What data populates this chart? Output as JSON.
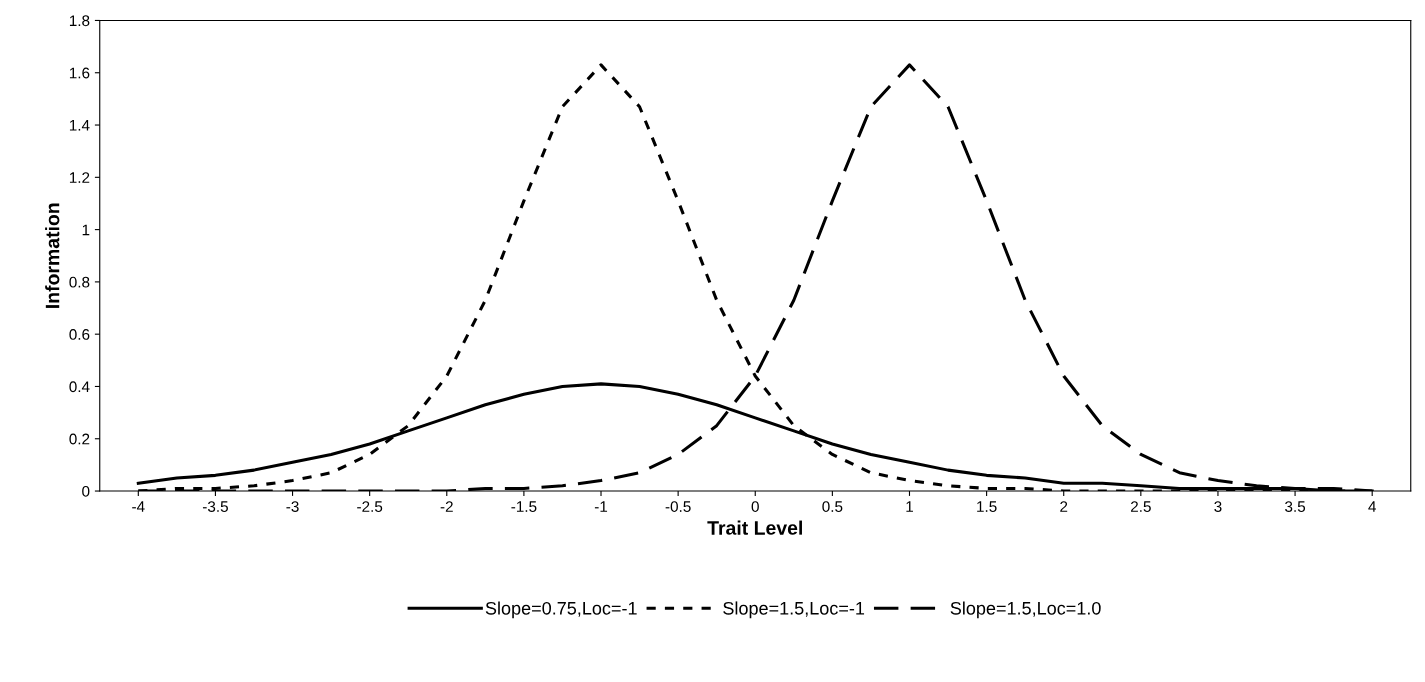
{
  "chart_data": {
    "type": "line",
    "xlabel": "Trait Level",
    "ylabel": "Information",
    "x": [
      -4,
      -3.75,
      -3.5,
      -3.25,
      -3,
      -2.75,
      -2.5,
      -2.25,
      -2,
      -1.75,
      -1.5,
      -1.25,
      -1,
      -0.75,
      -0.5,
      -0.25,
      0,
      0.25,
      0.5,
      0.75,
      1,
      1.25,
      1.5,
      1.75,
      2,
      2.25,
      2.5,
      2.75,
      3,
      3.25,
      3.5,
      3.75,
      4
    ],
    "series": [
      {
        "name": "Slope=0.75,Loc=-1",
        "color": "#000000",
        "line_style": "solid",
        "values": [
          0.03,
          0.05,
          0.06,
          0.08,
          0.11,
          0.14,
          0.18,
          0.23,
          0.28,
          0.33,
          0.37,
          0.4,
          0.41,
          0.4,
          0.37,
          0.33,
          0.28,
          0.23,
          0.18,
          0.14,
          0.11,
          0.08,
          0.06,
          0.05,
          0.03,
          0.03,
          0.02,
          0.01,
          0.01,
          0.01,
          0.01,
          0.0,
          0.0
        ]
      },
      {
        "name": "Slope=1.5,Loc=-1",
        "color": "#000000",
        "line_style": "dotted",
        "values": [
          0.0,
          0.01,
          0.01,
          0.02,
          0.04,
          0.07,
          0.14,
          0.25,
          0.44,
          0.73,
          1.11,
          1.47,
          1.63,
          1.47,
          1.11,
          0.73,
          0.44,
          0.25,
          0.14,
          0.07,
          0.04,
          0.02,
          0.01,
          0.01,
          0.0,
          0.0,
          0.0,
          0.0,
          0.0,
          0.0,
          0.0,
          0.0,
          0.0
        ]
      },
      {
        "name": "Slope=1.5,Loc=1.0",
        "color": "#000000",
        "line_style": "dashed",
        "values": [
          0.0,
          0.0,
          0.0,
          0.0,
          0.0,
          0.0,
          0.0,
          0.0,
          0.0,
          0.01,
          0.01,
          0.02,
          0.04,
          0.07,
          0.14,
          0.25,
          0.44,
          0.73,
          1.11,
          1.47,
          1.63,
          1.47,
          1.11,
          0.73,
          0.44,
          0.25,
          0.14,
          0.07,
          0.04,
          0.02,
          0.01,
          0.01,
          0.0
        ]
      }
    ],
    "xlim": [
      -4.25,
      4.25
    ],
    "xticks": [
      -4,
      -3.5,
      -3,
      -2.5,
      -2,
      -1.5,
      -1,
      -0.5,
      0,
      0.5,
      1,
      1.5,
      2,
      2.5,
      3,
      3.5,
      4
    ],
    "ylim": [
      0,
      1.8
    ],
    "yticks": [
      0,
      0.2,
      0.4,
      0.6,
      0.8,
      1,
      1.2,
      1.4,
      1.6,
      1.8
    ],
    "grid": false,
    "legend": "bottom",
    "marker": "none"
  }
}
